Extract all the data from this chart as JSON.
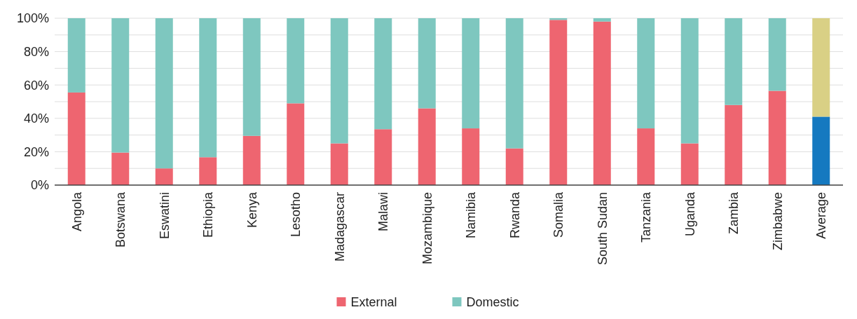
{
  "chart_data": {
    "type": "bar",
    "stacked": true,
    "categories": [
      "Angola",
      "Botswana",
      "Eswatini",
      "Ethiopia",
      "Kenya",
      "Lesotho",
      "Madagascar",
      "Malawi",
      "Mozambique",
      "Namibia",
      "Rwanda",
      "Somalia",
      "South Sudan",
      "Tanzania",
      "Uganda",
      "Zambia",
      "Zimbabwe",
      "Average"
    ],
    "series": [
      {
        "name": "External",
        "color": "#ee6570",
        "colors": [
          "#ee6570",
          "#ee6570",
          "#ee6570",
          "#ee6570",
          "#ee6570",
          "#ee6570",
          "#ee6570",
          "#ee6570",
          "#ee6570",
          "#ee6570",
          "#ee6570",
          "#ee6570",
          "#ee6570",
          "#ee6570",
          "#ee6570",
          "#ee6570",
          "#ee6570",
          "#1579c0"
        ],
        "values": [
          55.5,
          19.5,
          10,
          16.7,
          29.5,
          49,
          25,
          33.5,
          46,
          34,
          22,
          99,
          98,
          34,
          25,
          48,
          56.5,
          41
        ]
      },
      {
        "name": "Domestic",
        "color": "#7ec7bf",
        "colors": [
          "#7ec7bf",
          "#7ec7bf",
          "#7ec7bf",
          "#7ec7bf",
          "#7ec7bf",
          "#7ec7bf",
          "#7ec7bf",
          "#7ec7bf",
          "#7ec7bf",
          "#7ec7bf",
          "#7ec7bf",
          "#7ec7bf",
          "#7ec7bf",
          "#7ec7bf",
          "#7ec7bf",
          "#7ec7bf",
          "#7ec7bf",
          "#d9d085"
        ],
        "values": [
          44.5,
          80.5,
          90,
          83.3,
          70.5,
          51,
          75,
          66.5,
          54,
          66,
          78,
          1,
          2,
          66,
          75,
          52,
          43.5,
          59
        ]
      }
    ],
    "ylim": [
      0,
      100
    ],
    "yticks": [
      {
        "value": 0,
        "label": "0%"
      },
      {
        "value": 10,
        "label": null
      },
      {
        "value": 20,
        "label": "20%"
      },
      {
        "value": 30,
        "label": null
      },
      {
        "value": 40,
        "label": "40%"
      },
      {
        "value": 50,
        "label": null
      },
      {
        "value": 60,
        "label": "60%"
      },
      {
        "value": 70,
        "label": null
      },
      {
        "value": 80,
        "label": "80%"
      },
      {
        "value": 90,
        "label": null
      },
      {
        "value": 100,
        "label": "100%"
      }
    ],
    "grid": "y",
    "legend": "bottom"
  }
}
